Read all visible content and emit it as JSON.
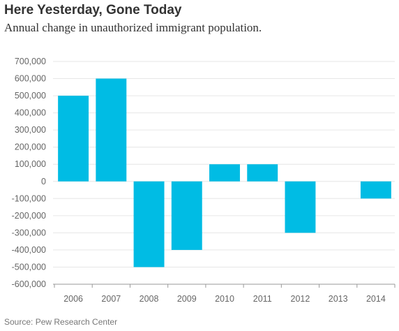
{
  "header": {
    "title": "Here Yesterday, Gone Today",
    "subtitle": "Annual change in unauthorized immigrant population."
  },
  "source": "Source: Pew Research Center",
  "colors": {
    "bar": "#00BCE4",
    "grid": "#E6E6E6",
    "axis": "#999999"
  },
  "chart_data": {
    "type": "bar",
    "title": "Here Yesterday, Gone Today",
    "subtitle": "Annual change in unauthorized immigrant population.",
    "categories": [
      "2006",
      "2007",
      "2008",
      "2009",
      "2010",
      "2011",
      "2012",
      "2013",
      "2014"
    ],
    "values": [
      500000,
      600000,
      -500000,
      -400000,
      100000,
      100000,
      -300000,
      0,
      -100000
    ],
    "ylim": [
      -600000,
      700000
    ],
    "yticks": [
      700000,
      600000,
      500000,
      400000,
      300000,
      200000,
      100000,
      0,
      -100000,
      -200000,
      -300000,
      -400000,
      -500000,
      -600000
    ],
    "ytick_labels": [
      "700,000",
      "600,000",
      "500,000",
      "400,000",
      "300,000",
      "200,000",
      "100,000",
      "0",
      "-100,000",
      "-200,000",
      "-300,000",
      "-400,000",
      "-500,000",
      "-600,000"
    ],
    "xlabel": "",
    "ylabel": "",
    "grid": true,
    "legend": "none"
  }
}
